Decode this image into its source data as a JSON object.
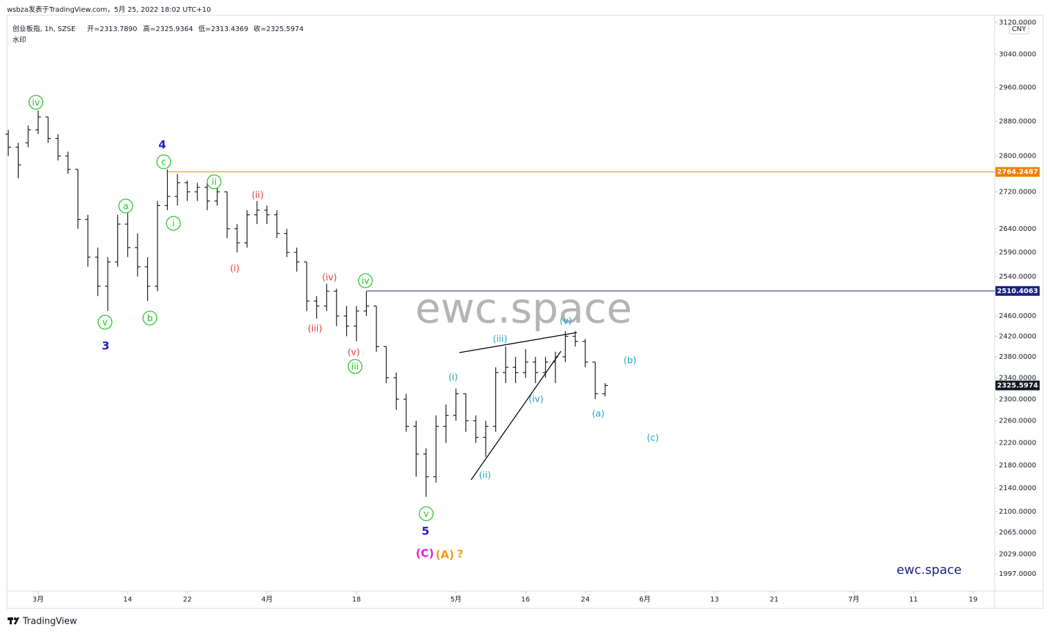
{
  "chart_data": {
    "type": "ohlc",
    "publisher": "wsbza发表于TradingView.com，5月 25, 2022 18:02 UTC+10",
    "symbol": "创业板指, 1h, SZSE",
    "ohlc_text": [
      "开=2313.7890",
      "高=2325.9364",
      "低=2313.4369",
      "收=2325.5974"
    ],
    "indicator": "水印",
    "currency": "CNY",
    "watermark": "ewc.space",
    "signature": "ewc.space",
    "brand": "TradingView",
    "color": "#131722",
    "log_scale": true,
    "grid": false,
    "categories": [
      null,
      null,
      null,
      "3月",
      null,
      null,
      null,
      null,
      null,
      null,
      null,
      null,
      "14",
      null,
      null,
      null,
      null,
      null,
      "22",
      null,
      null,
      null,
      null,
      null,
      null,
      null,
      "4月",
      null,
      null,
      null,
      null,
      null,
      null,
      null,
      null,
      "18",
      null,
      null,
      null,
      null,
      null,
      null,
      null,
      null,
      null,
      "5月",
      null,
      null,
      null,
      null,
      null,
      null,
      "16",
      null,
      null,
      null,
      null,
      null,
      "24",
      null,
      null,
      null,
      null,
      null,
      "6月",
      null,
      null,
      null,
      null,
      null,
      null,
      "13",
      null,
      null,
      null,
      null,
      null,
      "21",
      null,
      null,
      null,
      null,
      null,
      null,
      null,
      "7月",
      null,
      null,
      null,
      null,
      null,
      "11",
      null,
      null,
      null,
      null,
      null,
      "19",
      null,
      null
    ],
    "open": [
      2850,
      2820,
      2830,
      2860,
      2890,
      2840,
      2800,
      2770,
      2660,
      2580,
      2520,
      2570,
      2650,
      2600,
      2560,
      2520,
      2690,
      2710,
      2740,
      2720,
      2730,
      2700,
      2720,
      2640,
      2610,
      2670,
      2680,
      2670,
      2630,
      2590,
      2570,
      2490,
      2480,
      2510,
      2460,
      2440,
      2470,
      2480,
      2400,
      2340,
      2300,
      2250,
      2200,
      2160,
      2250,
      2270,
      2310,
      2260,
      2230,
      2250,
      2350,
      2360,
      2350,
      2370,
      2350,
      2370,
      2380,
      2420,
      2410,
      2370,
      2310,
      null,
      null,
      null,
      null,
      null,
      null,
      null,
      null,
      null,
      null,
      null,
      null,
      null,
      null,
      null,
      null,
      null,
      null,
      null,
      null,
      null,
      null,
      null,
      null,
      null,
      null,
      null,
      null,
      null,
      null,
      null,
      null,
      null,
      null,
      null,
      null,
      null,
      null,
      null
    ],
    "high": [
      2860,
      2830,
      2870,
      2905,
      2890,
      2850,
      2810,
      2770,
      2670,
      2600,
      2580,
      2670,
      2675,
      2630,
      2580,
      2700,
      2770,
      2760,
      2745,
      2740,
      2740,
      2745,
      2720,
      2650,
      2680,
      2700,
      2690,
      2680,
      2640,
      2600,
      2570,
      2500,
      2525,
      2515,
      2480,
      2480,
      2510,
      2480,
      2400,
      2350,
      2310,
      2260,
      2210,
      2270,
      2290,
      2320,
      2310,
      2270,
      2260,
      2360,
      2400,
      2380,
      2395,
      2380,
      2380,
      2390,
      2430,
      2430,
      2415,
      2370,
      2330,
      null,
      null,
      null,
      null,
      null,
      null,
      null,
      null,
      null,
      null,
      null,
      null,
      null,
      null,
      null,
      null,
      null,
      null,
      null,
      null,
      null,
      null,
      null,
      null,
      null,
      null,
      null,
      null,
      null,
      null,
      null,
      null,
      null,
      null,
      null,
      null,
      null,
      null,
      null
    ],
    "low": [
      2800,
      2750,
      2820,
      2850,
      2830,
      2790,
      2760,
      2640,
      2560,
      2500,
      2470,
      2560,
      2580,
      2540,
      2490,
      2510,
      2680,
      2690,
      2700,
      2700,
      2680,
      2690,
      2620,
      2590,
      2600,
      2650,
      2650,
      2620,
      2580,
      2550,
      2470,
      2455,
      2470,
      2440,
      2420,
      2410,
      2460,
      2390,
      2330,
      2280,
      2240,
      2160,
      2125,
      2150,
      2220,
      2260,
      2240,
      2220,
      2195,
      2240,
      2330,
      2330,
      2340,
      2330,
      2340,
      2330,
      2370,
      2400,
      2360,
      2300,
      2305,
      null,
      null,
      null,
      null,
      null,
      null,
      null,
      null,
      null,
      null,
      null,
      null,
      null,
      null,
      null,
      null,
      null,
      null,
      null,
      null,
      null,
      null,
      null,
      null,
      null,
      null,
      null,
      null,
      null,
      null,
      null,
      null,
      null,
      null,
      null,
      null,
      null,
      null,
      null
    ],
    "close": [
      2820,
      2780,
      2860,
      2890,
      2840,
      2800,
      2770,
      2660,
      2580,
      2520,
      2570,
      2650,
      2600,
      2560,
      2520,
      2690,
      2710,
      2740,
      2720,
      2730,
      2700,
      2720,
      2640,
      2610,
      2670,
      2680,
      2670,
      2630,
      2590,
      2570,
      2490,
      2480,
      2510,
      2460,
      2440,
      2470,
      2480,
      2400,
      2340,
      2300,
      2250,
      2200,
      2160,
      2250,
      2270,
      2310,
      2260,
      2230,
      2250,
      2350,
      2360,
      2350,
      2370,
      2350,
      2370,
      2380,
      2420,
      2410,
      2370,
      2310,
      2325.5974,
      null,
      null,
      null,
      null,
      null,
      null,
      null,
      null,
      null,
      null,
      null,
      null,
      null,
      null,
      null,
      null,
      null,
      null,
      null,
      null,
      null,
      null,
      null,
      null,
      null,
      null,
      null,
      null,
      null,
      null,
      null,
      null,
      null,
      null,
      null,
      null,
      null,
      null,
      null
    ],
    "ylim": [
      1969,
      3138
    ],
    "yticks": [
      {
        "value": 3120,
        "label": "3120.0000"
      },
      {
        "value": 3040,
        "label": "3040.0000"
      },
      {
        "value": 2960,
        "label": "2960.0000"
      },
      {
        "value": 2880,
        "label": "2880.0000"
      },
      {
        "value": 2800,
        "label": "2800.0000"
      },
      {
        "value": 2720,
        "label": "2720.0000"
      },
      {
        "value": 2640,
        "label": "2640.0000"
      },
      {
        "value": 2590,
        "label": "2590.0000"
      },
      {
        "value": 2540,
        "label": "2540.0000"
      },
      {
        "value": 2460,
        "label": "2460.0000"
      },
      {
        "value": 2420,
        "label": "2420.0000"
      },
      {
        "value": 2380,
        "label": "2380.0000"
      },
      {
        "value": 2340,
        "label": "2340.0000"
      },
      {
        "value": 2300,
        "label": "2300.0000"
      },
      {
        "value": 2260,
        "label": "2260.0000"
      },
      {
        "value": 2220,
        "label": "2220.0000"
      },
      {
        "value": 2180,
        "label": "2180.0000"
      },
      {
        "value": 2140,
        "label": "2140.0000"
      },
      {
        "value": 2100,
        "label": "2100.0000"
      },
      {
        "value": 2065,
        "label": "2065.0000"
      },
      {
        "value": 2029,
        "label": "2029.0000"
      },
      {
        "value": 1997,
        "label": "1997.0000"
      }
    ],
    "levels": [
      {
        "value": 2764.2487,
        "color": "#f57c00"
      },
      {
        "value": 2510.4063,
        "color": "#1a237e"
      }
    ],
    "last_color": "#131722",
    "annotations": [
      {
        "text": "iv",
        "color": "#22c322",
        "circled": true
      },
      {
        "text": "v",
        "color": "#22c322",
        "circled": true
      },
      {
        "text": "b",
        "color": "#22c322",
        "circled": true
      },
      {
        "text": "a",
        "color": "#22c322",
        "circled": true
      },
      {
        "text": "3",
        "color": "#1a1ad6",
        "circled": false
      },
      {
        "text": "4",
        "color": "#1a1ad6",
        "circled": false
      },
      {
        "text": "c",
        "color": "#22c322",
        "circled": true
      },
      {
        "text": "i",
        "color": "#22c322",
        "circled": true
      },
      {
        "text": "ii",
        "color": "#22c322",
        "circled": true
      },
      {
        "text": "(ii)",
        "color": "#e53935",
        "circled": false
      },
      {
        "text": "(i)",
        "color": "#e53935",
        "circled": false
      },
      {
        "text": "(iv)",
        "color": "#e53935",
        "circled": false
      },
      {
        "text": "(iii)",
        "color": "#e53935",
        "circled": false
      },
      {
        "text": "iv",
        "color": "#22c322",
        "circled": true
      },
      {
        "text": "(v)",
        "color": "#e53935",
        "circled": false
      },
      {
        "text": "iii",
        "color": "#22c322",
        "circled": true
      },
      {
        "text": "v",
        "color": "#22c322",
        "circled": true
      },
      {
        "text": "5",
        "color": "#1a1ad6",
        "circled": false
      },
      {
        "text": "(C)",
        "color": "#e020e0",
        "circled": false
      },
      {
        "text": "(A)",
        "color": "#f39c12",
        "circled": false
      },
      {
        "text": "?",
        "color": "#f39c12",
        "circled": false
      },
      {
        "text": "(i)",
        "color": "#1fa6c6",
        "circled": false
      },
      {
        "text": "(ii)",
        "color": "#1fa6c6",
        "circled": false
      },
      {
        "text": "(iii)",
        "color": "#1fa6c6",
        "circled": false
      },
      {
        "text": "(iv)",
        "color": "#1fa6c6",
        "circled": false
      },
      {
        "text": "(v)",
        "color": "#1fa6c6",
        "circled": false
      },
      {
        "text": "(a)",
        "color": "#1fa6c6",
        "circled": false
      },
      {
        "text": "(b)",
        "color": "#1fa6c6",
        "circled": false
      },
      {
        "text": "(c)",
        "color": "#1fa6c6",
        "circled": false
      }
    ]
  }
}
